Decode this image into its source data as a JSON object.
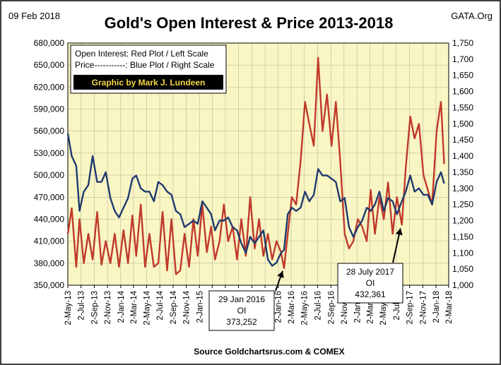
{
  "date_label": "09 Feb 2018",
  "site_label": "GATA.Org",
  "source_label": "Source Goldchartsrus.com & COMEX",
  "legend": {
    "line1": "Open Interest:  Red Plot / Left Scale",
    "line2": "Price-----------: Blue Plot / Right Scale",
    "credit": "Graphic by Mark J. Lundeen"
  },
  "annotations": [
    {
      "date": "2 Jan 2016",
      "lines": [
        "29 Jan 2016",
        "OI",
        "373,252"
      ]
    },
    {
      "date": "28 Jul 2017",
      "lines": [
        "28 July 2017",
        "OI",
        "432,361"
      ]
    }
  ],
  "colors": {
    "plot_bg": "#faf6c4",
    "open_interest": "#c0392b",
    "price": "#1f3a6e",
    "credit_bg": "#000000",
    "credit_text": "#f5d742"
  },
  "chart_data": {
    "type": "line",
    "title": "Gold's Open Interest & Price 2013-2018",
    "x_tick_labels": [
      "2-May-13",
      "2-Jul-13",
      "2-Sep-13",
      "2-Nov-13",
      "2-Jan-14",
      "2-Mar-14",
      "2-May-14",
      "2-Jul-14",
      "2-Sep-14",
      "2-Nov-14",
      "2-Jan-15",
      "2-Mar-15",
      "2-May-15",
      "2-Jul-15",
      "2-Sep-15",
      "2-Nov-15",
      "2-Jan-16",
      "2-Mar-16",
      "2-May-16",
      "2-Jul-16",
      "2-Sep-16",
      "2-Nov-16",
      "2-Jan-17",
      "2-Mar-17",
      "2-May-17",
      "2-Jul-17",
      "2-Sep-17",
      "2-Nov-17",
      "2-Jan-18",
      "2-Mar-18"
    ],
    "y_left": {
      "ticks": [
        "350,000",
        "380,000",
        "410,000",
        "440,000",
        "470,000",
        "500,000",
        "530,000",
        "560,000",
        "590,000",
        "620,000",
        "650,000",
        "680,000"
      ],
      "ylim": [
        350000,
        680000
      ]
    },
    "y_right": {
      "ticks": [
        "1,000",
        "1,050",
        "1,100",
        "1,150",
        "1,200",
        "1,250",
        "1,300",
        "1,350",
        "1,400",
        "1,450",
        "1,500",
        "1,550",
        "1,600",
        "1,650",
        "1,700",
        "1,750"
      ],
      "ylim": [
        1000,
        1750
      ]
    },
    "grid": true,
    "series": [
      {
        "name": "Open Interest",
        "axis": "left",
        "x": [
          "2013-05-02",
          "2013-05-20",
          "2013-06-10",
          "2013-06-25",
          "2013-07-15",
          "2013-08-05",
          "2013-08-25",
          "2013-09-15",
          "2013-10-05",
          "2013-10-25",
          "2013-11-15",
          "2013-12-05",
          "2013-12-25",
          "2014-01-15",
          "2014-02-05",
          "2014-02-25",
          "2014-03-15",
          "2014-04-05",
          "2014-04-25",
          "2014-05-15",
          "2014-06-05",
          "2014-06-25",
          "2014-07-15",
          "2014-08-05",
          "2014-08-25",
          "2014-09-15",
          "2014-10-05",
          "2014-10-25",
          "2014-11-15",
          "2014-12-05",
          "2014-12-25",
          "2015-01-15",
          "2015-02-05",
          "2015-02-25",
          "2015-03-15",
          "2015-04-05",
          "2015-04-25",
          "2015-05-15",
          "2015-06-05",
          "2015-06-25",
          "2015-07-15",
          "2015-08-05",
          "2015-08-25",
          "2015-09-15",
          "2015-10-05",
          "2015-10-25",
          "2015-11-15",
          "2015-12-05",
          "2015-12-25",
          "2016-01-15",
          "2016-01-29",
          "2016-02-15",
          "2016-03-05",
          "2016-03-25",
          "2016-04-15",
          "2016-05-05",
          "2016-05-25",
          "2016-06-15",
          "2016-07-05",
          "2016-07-25",
          "2016-08-15",
          "2016-09-05",
          "2016-09-25",
          "2016-10-15",
          "2016-11-05",
          "2016-11-25",
          "2016-12-15",
          "2017-01-05",
          "2017-01-25",
          "2017-02-15",
          "2017-03-05",
          "2017-03-25",
          "2017-04-15",
          "2017-05-05",
          "2017-05-25",
          "2017-06-15",
          "2017-07-05",
          "2017-07-28",
          "2017-08-15",
          "2017-09-05",
          "2017-09-25",
          "2017-10-15",
          "2017-11-05",
          "2017-11-25",
          "2017-12-15",
          "2018-01-05",
          "2018-01-25",
          "2018-02-09"
        ],
        "values": [
          420000,
          455000,
          375000,
          440000,
          380000,
          420000,
          385000,
          450000,
          378000,
          410000,
          380000,
          420000,
          375000,
          425000,
          380000,
          445000,
          390000,
          460000,
          375000,
          420000,
          375000,
          380000,
          450000,
          370000,
          440000,
          365000,
          370000,
          420000,
          375000,
          440000,
          390000,
          460000,
          395000,
          430000,
          385000,
          410000,
          460000,
          410000,
          430000,
          385000,
          440000,
          390000,
          470000,
          400000,
          440000,
          390000,
          420000,
          385000,
          410000,
          395000,
          373252,
          420000,
          470000,
          460000,
          520000,
          600000,
          570000,
          540000,
          660000,
          560000,
          610000,
          540000,
          600000,
          520000,
          420000,
          400000,
          410000,
          440000,
          430000,
          410000,
          480000,
          420000,
          470000,
          440000,
          490000,
          420000,
          470000,
          432361,
          510000,
          580000,
          550000,
          570000,
          500000,
          480000,
          460000,
          560000,
          600000,
          515000
        ]
      },
      {
        "name": "Price",
        "axis": "right",
        "x": [
          "2013-05-02",
          "2013-05-20",
          "2013-06-10",
          "2013-06-25",
          "2013-07-15",
          "2013-08-05",
          "2013-08-25",
          "2013-09-15",
          "2013-10-05",
          "2013-10-25",
          "2013-11-15",
          "2013-12-05",
          "2013-12-25",
          "2014-01-15",
          "2014-02-05",
          "2014-02-25",
          "2014-03-15",
          "2014-04-05",
          "2014-04-25",
          "2014-05-15",
          "2014-06-05",
          "2014-06-25",
          "2014-07-15",
          "2014-08-05",
          "2014-08-25",
          "2014-09-15",
          "2014-10-05",
          "2014-10-25",
          "2014-11-15",
          "2014-12-05",
          "2014-12-25",
          "2015-01-15",
          "2015-02-05",
          "2015-02-25",
          "2015-03-15",
          "2015-04-05",
          "2015-04-25",
          "2015-05-15",
          "2015-06-05",
          "2015-06-25",
          "2015-07-15",
          "2015-08-05",
          "2015-08-25",
          "2015-09-15",
          "2015-10-05",
          "2015-10-25",
          "2015-11-15",
          "2015-12-05",
          "2015-12-25",
          "2016-01-15",
          "2016-01-29",
          "2016-02-15",
          "2016-03-05",
          "2016-03-25",
          "2016-04-15",
          "2016-05-05",
          "2016-05-25",
          "2016-06-15",
          "2016-07-05",
          "2016-07-25",
          "2016-08-15",
          "2016-09-05",
          "2016-09-25",
          "2016-10-15",
          "2016-11-05",
          "2016-11-25",
          "2016-12-15",
          "2017-01-05",
          "2017-01-25",
          "2017-02-15",
          "2017-03-05",
          "2017-03-25",
          "2017-04-15",
          "2017-05-05",
          "2017-05-25",
          "2017-06-15",
          "2017-07-05",
          "2017-07-28",
          "2017-08-15",
          "2017-09-05",
          "2017-09-25",
          "2017-10-15",
          "2017-11-05",
          "2017-11-25",
          "2017-12-15",
          "2018-01-05",
          "2018-01-25",
          "2018-02-09"
        ],
        "values": [
          1470,
          1400,
          1370,
          1230,
          1290,
          1310,
          1400,
          1320,
          1320,
          1350,
          1270,
          1230,
          1210,
          1240,
          1270,
          1330,
          1340,
          1300,
          1290,
          1290,
          1260,
          1320,
          1310,
          1290,
          1280,
          1230,
          1220,
          1180,
          1190,
          1200,
          1190,
          1260,
          1240,
          1220,
          1170,
          1200,
          1200,
          1210,
          1180,
          1170,
          1130,
          1100,
          1150,
          1130,
          1150,
          1170,
          1080,
          1060,
          1070,
          1100,
          1110,
          1220,
          1240,
          1230,
          1240,
          1290,
          1260,
          1280,
          1360,
          1340,
          1340,
          1330,
          1320,
          1260,
          1270,
          1180,
          1150,
          1180,
          1200,
          1240,
          1230,
          1250,
          1290,
          1230,
          1270,
          1260,
          1220,
          1260,
          1290,
          1340,
          1290,
          1300,
          1280,
          1280,
          1250,
          1320,
          1350,
          1315
        ]
      }
    ]
  }
}
